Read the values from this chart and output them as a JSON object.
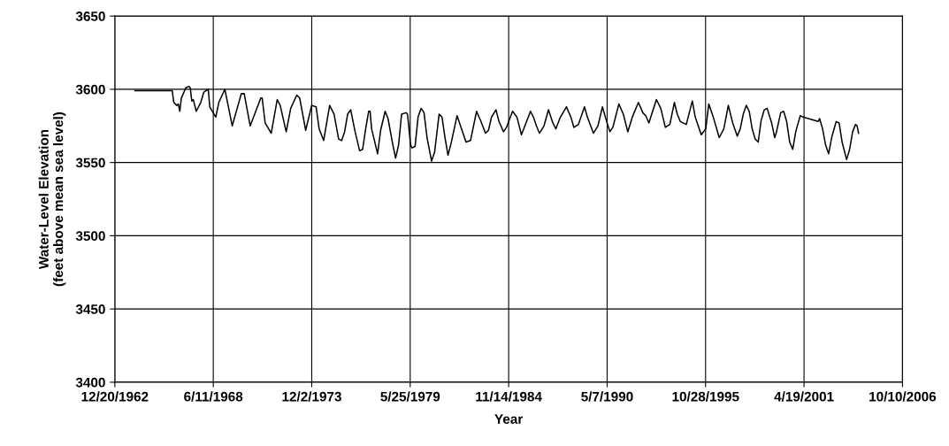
{
  "chart_data": {
    "type": "line",
    "xlabel": "Year",
    "ylabel": "Water-Level Elevation\n(feet above mean sea level)",
    "xlim": [
      "1962-12-20",
      "2006-10-10"
    ],
    "xticks": [
      {
        "value": "1962-12-20",
        "label": "12/20/1962"
      },
      {
        "value": "1968-06-11",
        "label": "6/11/1968"
      },
      {
        "value": "1973-12-02",
        "label": "12/2/1973"
      },
      {
        "value": "1979-05-25",
        "label": "5/25/1979"
      },
      {
        "value": "1984-11-14",
        "label": "11/14/1984"
      },
      {
        "value": "1990-05-07",
        "label": "5/7/1990"
      },
      {
        "value": "1995-10-28",
        "label": "10/28/1995"
      },
      {
        "value": "2001-04-19",
        "label": "4/19/2001"
      },
      {
        "value": "2006-10-10",
        "label": "10/10/2006"
      }
    ],
    "ylim": [
      3400,
      3650
    ],
    "yticks": [
      3400,
      3450,
      3500,
      3550,
      3600,
      3650
    ],
    "grid": true,
    "marker": "none",
    "line_style": "solid",
    "series": [
      {
        "color": "#000000",
        "x": [
          "1964-02",
          "1966-03",
          "1966-04",
          "1966-06",
          "1966-07",
          "1966-08",
          "1966-09",
          "1966-12",
          "1967-02",
          "1967-03",
          "1967-04",
          "1967-05",
          "1967-07",
          "1967-10",
          "1967-12",
          "1968-03",
          "1968-04",
          "1968-08",
          "1968-10",
          "1969-02",
          "1969-07",
          "1970-01",
          "1970-03",
          "1970-07",
          "1971-02",
          "1971-03",
          "1971-05",
          "1971-09",
          "1972-01",
          "1972-03",
          "1972-07",
          "1972-10",
          "1973-02",
          "1973-04",
          "1973-08",
          "1973-12",
          "1974-03",
          "1974-05",
          "1974-08",
          "1974-10",
          "1974-12",
          "1975-03",
          "1975-06",
          "1975-08",
          "1975-10",
          "1975-12",
          "1976-02",
          "1976-05",
          "1976-08",
          "1976-10",
          "1976-12",
          "1977-02",
          "1977-03",
          "1977-04",
          "1977-08",
          "1977-10",
          "1978-01",
          "1978-03",
          "1978-06",
          "1978-08",
          "1978-10",
          "1978-12",
          "1979-03",
          "1979-04",
          "1979-06",
          "1979-07",
          "1979-09",
          "1979-11",
          "1980-01",
          "1980-03",
          "1980-05",
          "1980-08",
          "1980-10",
          "1981-01",
          "1981-03",
          "1981-05",
          "1981-07",
          "1981-09",
          "1982-01",
          "1982-04",
          "1982-07",
          "1982-10",
          "1983-02",
          "1983-05",
          "1983-08",
          "1983-10",
          "1983-12",
          "1984-03",
          "1984-05",
          "1984-08",
          "1984-10",
          "1985-02",
          "1985-05",
          "1985-08",
          "1985-11",
          "1986-02",
          "1986-04",
          "1986-06",
          "1986-08",
          "1986-11",
          "1987-02",
          "1987-04",
          "1987-05",
          "1987-07",
          "1987-10",
          "1988-02",
          "1988-05",
          "1988-07",
          "1988-10",
          "1989-02",
          "1989-04",
          "1989-08",
          "1989-11",
          "1990-02",
          "1990-04",
          "1990-07",
          "1990-09",
          "1991-01",
          "1991-04",
          "1991-07",
          "1991-10",
          "1992-02",
          "1992-05",
          "1992-07",
          "1992-09",
          "1993-02",
          "1993-05",
          "1993-08",
          "1993-11",
          "1994-02",
          "1994-04",
          "1994-06",
          "1994-10",
          "1995-02",
          "1995-04",
          "1995-08",
          "1995-11",
          "1996-01",
          "1996-04",
          "1996-08",
          "1996-11",
          "1997-02",
          "1997-05",
          "1997-08",
          "1997-10",
          "1997-12",
          "1998-02",
          "1998-04",
          "1998-06",
          "1998-08",
          "1998-10",
          "1998-12",
          "1999-02",
          "1999-04",
          "1999-07",
          "1999-09",
          "1999-10",
          "2000-01",
          "2000-03",
          "2000-05",
          "2000-07",
          "2000-09",
          "2000-11",
          "2001-02",
          "2001-04",
          "2002-02",
          "2002-03",
          "2002-05",
          "2002-07",
          "2002-09",
          "2002-11",
          "2003-02",
          "2003-04",
          "2003-06",
          "2003-09",
          "2003-11",
          "2004-01",
          "2004-03",
          "2004-04",
          "2004-05"
        ],
        "values": [
          3599,
          3599,
          3591,
          3589,
          3590,
          3585,
          3594,
          3601,
          3602,
          3601,
          3592,
          3593,
          3585,
          3591,
          3598,
          3600,
          3588,
          3581,
          3591,
          3600,
          3575,
          3597,
          3597,
          3575,
          3594,
          3594,
          3577,
          3570,
          3593,
          3589,
          3571,
          3587,
          3596,
          3594,
          3572,
          3589,
          3588,
          3573,
          3565,
          3577,
          3589,
          3583,
          3566,
          3565,
          3571,
          3583,
          3586,
          3571,
          3558,
          3559,
          3573,
          3585,
          3585,
          3573,
          3556,
          3572,
          3585,
          3580,
          3563,
          3553,
          3562,
          3583,
          3584,
          3583,
          3562,
          3560,
          3561,
          3581,
          3587,
          3584,
          3567,
          3551,
          3557,
          3583,
          3581,
          3567,
          3555,
          3563,
          3582,
          3573,
          3564,
          3565,
          3585,
          3578,
          3570,
          3572,
          3581,
          3586,
          3578,
          3571,
          3574,
          3585,
          3581,
          3569,
          3577,
          3585,
          3581,
          3575,
          3570,
          3575,
          3586,
          3580,
          3577,
          3573,
          3581,
          3588,
          3581,
          3574,
          3576,
          3588,
          3581,
          3570,
          3575,
          3588,
          3581,
          3571,
          3574,
          3590,
          3583,
          3571,
          3581,
          3591,
          3584,
          3582,
          3577,
          3593,
          3587,
          3574,
          3576,
          3591,
          3583,
          3578,
          3576,
          3592,
          3581,
          3569,
          3573,
          3590,
          3581,
          3567,
          3573,
          3589,
          3577,
          3568,
          3573,
          3583,
          3589,
          3585,
          3573,
          3566,
          3564,
          3579,
          3586,
          3587,
          3577,
          3567,
          3570,
          3584,
          3585,
          3578,
          3564,
          3559,
          3571,
          3582,
          3581,
          3578,
          3580,
          3573,
          3562,
          3556,
          3567,
          3578,
          3577,
          3564,
          3552,
          3559,
          3571,
          3576,
          3575,
          3570
        ]
      }
    ]
  }
}
